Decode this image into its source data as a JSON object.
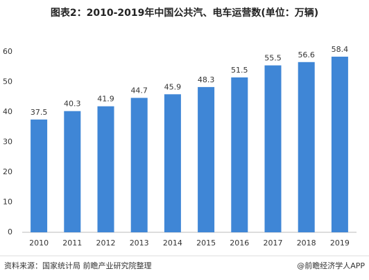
{
  "chart_data": {
    "type": "bar",
    "title": "图表2：2010-2019年中国公共汽、电车运营数(单位：万辆)",
    "categories": [
      "2010",
      "2011",
      "2012",
      "2013",
      "2014",
      "2015",
      "2016",
      "2017",
      "2018",
      "2019"
    ],
    "values": [
      37.5,
      40.3,
      41.9,
      44.7,
      45.9,
      48.3,
      51.5,
      55.5,
      56.6,
      58.4
    ],
    "color": "#3f86d6",
    "ylim": [
      0,
      60
    ],
    "yticks": [
      0,
      10,
      20,
      30,
      40,
      50,
      60
    ],
    "grid": false
  },
  "source": "资料来源：国家统计局 前瞻产业研究院整理",
  "credit": "@前瞻经济学人APP"
}
